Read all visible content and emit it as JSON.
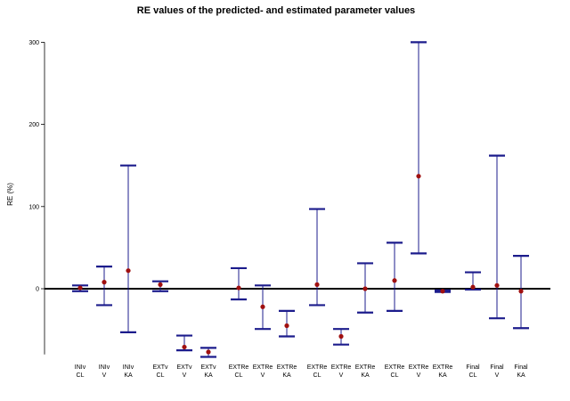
{
  "chart_data": {
    "type": "errorbar",
    "title": "RE values of the predicted- and estimated parameter values",
    "xlabel": "",
    "ylabel": "RE (%)",
    "ylim": [
      -85,
      310
    ],
    "yticks": [
      0,
      100,
      200,
      300
    ],
    "reference_line": 0,
    "grid": false,
    "legend": "none",
    "colors": {
      "whisker": "#1c1c8c",
      "point": "#a01010",
      "zero_line": "#000000"
    },
    "categories": [
      [
        "INIv",
        "CL"
      ],
      [
        "INIv",
        "V"
      ],
      [
        "INIv",
        "KA"
      ],
      [
        "EXTv",
        "CL"
      ],
      [
        "EXTv",
        "V"
      ],
      [
        "EXTv",
        "KA"
      ],
      [
        "EXTRe",
        "CL"
      ],
      [
        "EXTRe",
        "V"
      ],
      [
        "EXTRe",
        "KA"
      ],
      [
        "EXTRe",
        "CL"
      ],
      [
        "EXTRe",
        "V"
      ],
      [
        "EXTRe",
        "KA"
      ],
      [
        "EXTRe",
        "CL"
      ],
      [
        "EXTRe",
        "V"
      ],
      [
        "EXTRe",
        "KA"
      ],
      [
        "Final",
        "CL"
      ],
      [
        "Final",
        "V"
      ],
      [
        "Final",
        "KA"
      ]
    ],
    "values": [
      1,
      8,
      22,
      5,
      -71,
      -77,
      1,
      -22,
      -45,
      5,
      -58,
      0,
      10,
      137,
      -3,
      2,
      4,
      -3
    ],
    "upper": [
      4,
      27,
      150,
      9,
      -57,
      -72,
      25,
      4,
      -27,
      97,
      -49,
      31,
      56,
      300,
      -2,
      20,
      162,
      40
    ],
    "lower": [
      -3,
      -20,
      -53,
      -3,
      -75,
      -83,
      -13,
      -49,
      -58,
      -20,
      -68,
      -29,
      -27,
      43,
      -4,
      -1,
      -36,
      -48
    ]
  }
}
